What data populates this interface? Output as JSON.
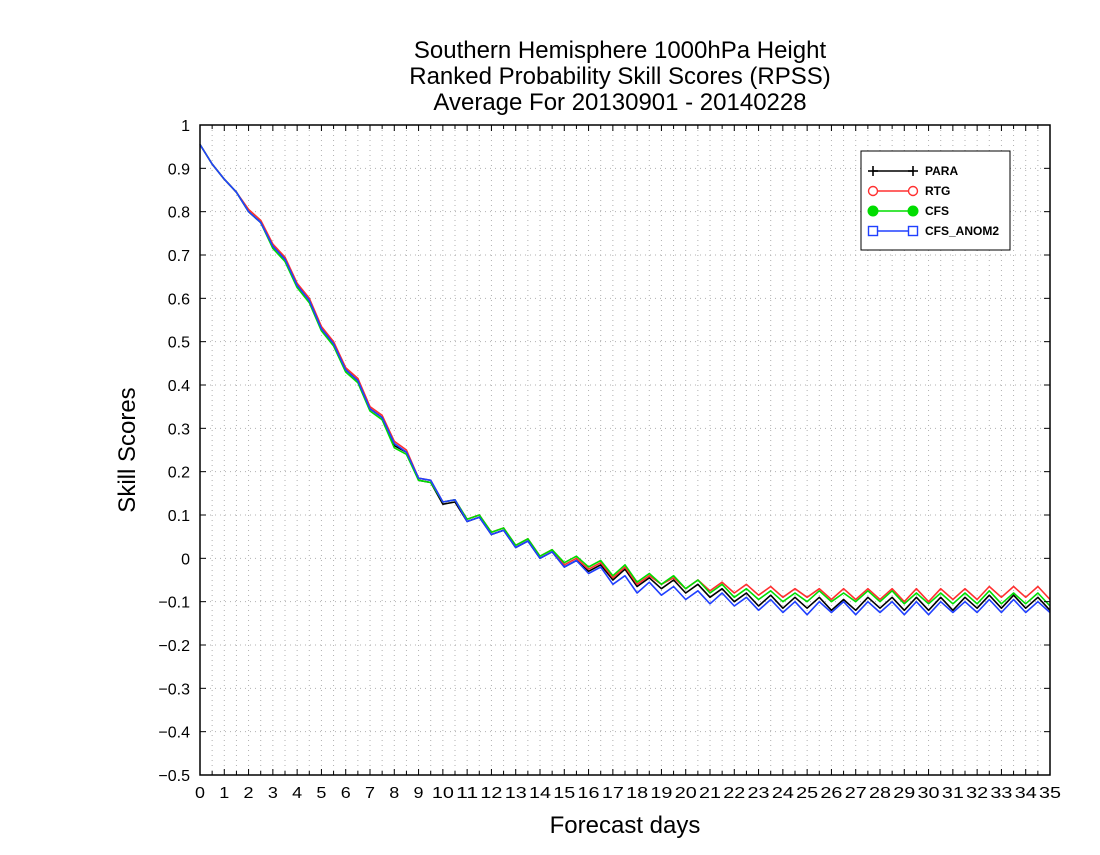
{
  "chart_data": {
    "type": "line",
    "title_lines": [
      "Southern Hemisphere 1000hPa Height",
      "Ranked Probability Skill Scores (RPSS)",
      "Average For 20130901 - 20140228"
    ],
    "xlabel": "Forecast days",
    "ylabel": "Skill Scores",
    "xlim": [
      0,
      35
    ],
    "ylim": [
      -0.5,
      1
    ],
    "x_ticks": [
      0,
      1,
      2,
      3,
      4,
      5,
      6,
      7,
      8,
      9,
      10,
      11,
      12,
      13,
      14,
      15,
      16,
      17,
      18,
      19,
      20,
      21,
      22,
      23,
      24,
      25,
      26,
      27,
      28,
      29,
      30,
      31,
      32,
      33,
      34,
      35
    ],
    "y_ticks": [
      "1",
      "0.9",
      "0.8",
      "0.7",
      "0.6",
      "0.5",
      "0.4",
      "0.3",
      "0.2",
      "0.1",
      "0",
      "−0.1",
      "−0.2",
      "−0.3",
      "−0.4",
      "−0.5"
    ],
    "y_tick_values": [
      1,
      0.9,
      0.8,
      0.7,
      0.6,
      0.5,
      0.4,
      0.3,
      0.2,
      0.1,
      0,
      -0.1,
      -0.2,
      -0.3,
      -0.4,
      -0.5
    ],
    "grid": true,
    "legend_position": "top-right",
    "x": [
      0,
      0.5,
      1,
      1.5,
      2,
      2.5,
      3,
      3.5,
      4,
      4.5,
      5,
      5.5,
      6,
      6.5,
      7,
      7.5,
      8,
      8.5,
      9,
      9.5,
      10,
      10.5,
      11,
      11.5,
      12,
      12.5,
      13,
      13.5,
      14,
      14.5,
      15,
      15.5,
      16,
      16.5,
      17,
      17.5,
      18,
      18.5,
      19,
      19.5,
      20,
      20.5,
      21,
      21.5,
      22,
      22.5,
      23,
      23.5,
      24,
      24.5,
      25,
      25.5,
      26,
      26.5,
      27,
      27.5,
      28,
      28.5,
      29,
      29.5,
      30,
      30.5,
      31,
      31.5,
      32,
      32.5,
      33,
      33.5,
      34,
      34.5,
      35
    ],
    "series": [
      {
        "name": "PARA",
        "color": "#000000",
        "marker": "plus",
        "values": [
          0.955,
          0.91,
          0.875,
          0.845,
          0.8,
          0.775,
          0.72,
          0.69,
          0.63,
          0.595,
          0.53,
          0.495,
          0.435,
          0.41,
          0.345,
          0.325,
          0.26,
          0.245,
          0.18,
          0.175,
          0.125,
          0.13,
          0.085,
          0.095,
          0.055,
          0.065,
          0.025,
          0.04,
          0.0,
          0.015,
          -0.02,
          -0.005,
          -0.03,
          -0.015,
          -0.05,
          -0.025,
          -0.065,
          -0.045,
          -0.07,
          -0.05,
          -0.08,
          -0.06,
          -0.09,
          -0.07,
          -0.1,
          -0.08,
          -0.11,
          -0.085,
          -0.115,
          -0.09,
          -0.115,
          -0.09,
          -0.12,
          -0.095,
          -0.12,
          -0.09,
          -0.115,
          -0.09,
          -0.12,
          -0.09,
          -0.12,
          -0.09,
          -0.12,
          -0.09,
          -0.115,
          -0.085,
          -0.115,
          -0.085,
          -0.115,
          -0.09,
          -0.12
        ]
      },
      {
        "name": "RTG",
        "color": "#ff3030",
        "marker": "circle",
        "values": [
          0.955,
          0.91,
          0.875,
          0.845,
          0.805,
          0.78,
          0.725,
          0.695,
          0.635,
          0.6,
          0.535,
          0.5,
          0.44,
          0.415,
          0.35,
          0.33,
          0.27,
          0.25,
          0.185,
          0.18,
          0.13,
          0.135,
          0.09,
          0.1,
          0.06,
          0.07,
          0.03,
          0.045,
          0.005,
          0.02,
          -0.015,
          0.0,
          -0.025,
          -0.01,
          -0.045,
          -0.02,
          -0.06,
          -0.04,
          -0.06,
          -0.045,
          -0.07,
          -0.05,
          -0.075,
          -0.055,
          -0.08,
          -0.06,
          -0.085,
          -0.065,
          -0.09,
          -0.07,
          -0.09,
          -0.07,
          -0.095,
          -0.07,
          -0.095,
          -0.07,
          -0.095,
          -0.07,
          -0.1,
          -0.07,
          -0.1,
          -0.07,
          -0.095,
          -0.07,
          -0.095,
          -0.065,
          -0.09,
          -0.065,
          -0.09,
          -0.065,
          -0.095
        ]
      },
      {
        "name": "CFS",
        "color": "#00dd00",
        "marker": "filled-circle",
        "values": [
          0.955,
          0.91,
          0.875,
          0.845,
          0.8,
          0.775,
          0.715,
          0.685,
          0.625,
          0.59,
          0.525,
          0.49,
          0.43,
          0.405,
          0.34,
          0.32,
          0.255,
          0.24,
          0.18,
          0.175,
          0.13,
          0.135,
          0.09,
          0.1,
          0.06,
          0.07,
          0.03,
          0.045,
          0.005,
          0.02,
          -0.01,
          0.005,
          -0.02,
          -0.005,
          -0.04,
          -0.015,
          -0.055,
          -0.035,
          -0.06,
          -0.04,
          -0.07,
          -0.05,
          -0.08,
          -0.06,
          -0.09,
          -0.07,
          -0.095,
          -0.075,
          -0.1,
          -0.08,
          -0.1,
          -0.075,
          -0.1,
          -0.08,
          -0.1,
          -0.075,
          -0.1,
          -0.075,
          -0.105,
          -0.08,
          -0.105,
          -0.08,
          -0.105,
          -0.08,
          -0.105,
          -0.075,
          -0.105,
          -0.08,
          -0.105,
          -0.08,
          -0.11
        ]
      },
      {
        "name": "CFS_ANOM2",
        "color": "#2040ff",
        "marker": "square",
        "values": [
          0.955,
          0.91,
          0.875,
          0.845,
          0.8,
          0.775,
          0.72,
          0.69,
          0.63,
          0.595,
          0.53,
          0.495,
          0.435,
          0.41,
          0.345,
          0.325,
          0.265,
          0.245,
          0.185,
          0.18,
          0.13,
          0.135,
          0.085,
          0.095,
          0.055,
          0.065,
          0.025,
          0.04,
          0.0,
          0.015,
          -0.02,
          -0.005,
          -0.035,
          -0.02,
          -0.06,
          -0.04,
          -0.08,
          -0.055,
          -0.085,
          -0.065,
          -0.095,
          -0.075,
          -0.105,
          -0.08,
          -0.11,
          -0.09,
          -0.12,
          -0.095,
          -0.125,
          -0.1,
          -0.13,
          -0.1,
          -0.125,
          -0.1,
          -0.13,
          -0.1,
          -0.125,
          -0.1,
          -0.13,
          -0.1,
          -0.13,
          -0.1,
          -0.125,
          -0.1,
          -0.125,
          -0.095,
          -0.125,
          -0.095,
          -0.125,
          -0.1,
          -0.125
        ]
      }
    ]
  }
}
